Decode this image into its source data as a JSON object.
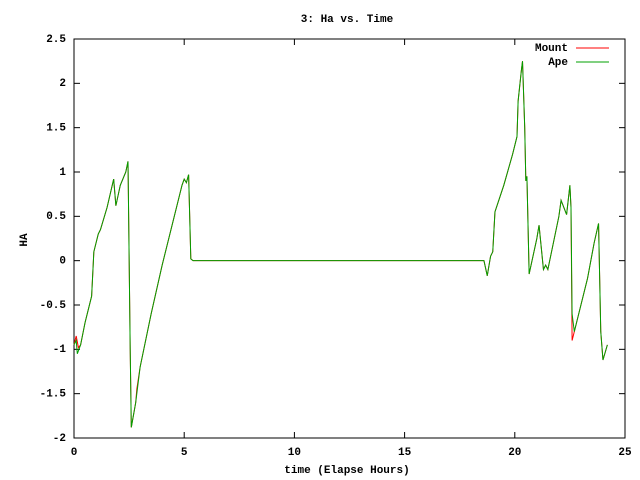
{
  "chart_data": {
    "type": "line",
    "title": "3: Ha vs. Time",
    "x_label": "time (Elapse Hours)",
    "y_label": "HA",
    "xlim": [
      0,
      25
    ],
    "xticks": [
      0,
      5,
      10,
      15,
      20,
      25
    ],
    "ylim": [
      -2,
      2.5
    ],
    "yticks": [
      -2,
      -1.5,
      -1,
      -0.5,
      0,
      0.5,
      1,
      1.5,
      2,
      2.5
    ],
    "grid": false,
    "legend": "top-right",
    "series": [
      {
        "name": "Mount",
        "color": "#ff0000",
        "x": [
          0,
          0.1,
          0.2,
          0.3,
          0.5,
          0.8,
          0.9,
          1.1,
          1.2,
          1.5,
          1.8,
          1.9,
          2.1,
          2.35,
          2.45,
          2.55,
          2.6,
          2.8,
          2.85,
          3.0,
          3.5,
          4.0,
          4.5,
          4.9,
          5.0,
          5.1,
          5.2,
          5.3,
          5.4,
          18.6,
          18.75,
          18.9,
          19.0,
          19.1,
          19.5,
          19.9,
          20.1,
          20.15,
          20.3,
          20.35,
          20.45,
          20.5,
          20.55,
          20.65,
          21.0,
          21.1,
          21.3,
          21.4,
          21.5,
          22.0,
          22.1,
          22.35,
          22.5,
          22.55,
          22.6,
          22.7,
          23.0,
          23.3,
          23.6,
          23.8,
          23.9,
          24.0,
          24.2
        ],
        "values": [
          -0.95,
          -0.85,
          -0.98,
          -0.95,
          -0.7,
          -0.4,
          0.1,
          0.3,
          0.35,
          0.6,
          0.92,
          0.62,
          0.85,
          1.0,
          1.12,
          -1.0,
          -1.88,
          -1.6,
          -1.45,
          -1.2,
          -0.6,
          -0.05,
          0.45,
          0.85,
          0.92,
          0.88,
          0.97,
          0.02,
          0.0,
          0.0,
          -0.17,
          0.05,
          0.1,
          0.55,
          0.85,
          1.2,
          1.4,
          1.8,
          2.15,
          2.25,
          1.5,
          0.9,
          0.95,
          -0.15,
          0.25,
          0.4,
          -0.1,
          -0.05,
          -0.1,
          0.5,
          0.68,
          0.52,
          0.85,
          0.6,
          -0.9,
          -0.8,
          -0.5,
          -0.2,
          0.2,
          0.42,
          -0.8,
          -1.12,
          -0.95
        ]
      },
      {
        "name": "Ape",
        "color": "#00a000",
        "x": [
          0,
          0.1,
          0.15,
          0.3,
          0.5,
          0.8,
          0.9,
          1.1,
          1.2,
          1.5,
          1.8,
          1.9,
          2.1,
          2.35,
          2.45,
          2.55,
          2.6,
          2.8,
          3.0,
          3.5,
          4.0,
          4.5,
          4.9,
          5.0,
          5.1,
          5.2,
          5.3,
          5.4,
          18.6,
          18.75,
          18.9,
          19.0,
          19.1,
          19.5,
          19.9,
          20.1,
          20.15,
          20.3,
          20.35,
          20.45,
          20.5,
          20.55,
          20.65,
          21.0,
          21.1,
          21.3,
          21.4,
          21.5,
          22.0,
          22.1,
          22.35,
          22.5,
          22.55,
          22.6,
          22.7,
          23.0,
          23.3,
          23.6,
          23.8,
          23.9,
          24.0,
          24.2
        ],
        "values": [
          -0.95,
          -0.9,
          -1.05,
          -0.95,
          -0.7,
          -0.4,
          0.1,
          0.3,
          0.35,
          0.6,
          0.92,
          0.62,
          0.85,
          1.0,
          1.12,
          -1.0,
          -1.88,
          -1.6,
          -1.2,
          -0.6,
          -0.05,
          0.45,
          0.85,
          0.92,
          0.88,
          0.97,
          0.02,
          0.0,
          0.0,
          -0.17,
          0.05,
          0.1,
          0.55,
          0.85,
          1.2,
          1.4,
          1.8,
          2.15,
          2.25,
          1.5,
          0.9,
          0.95,
          -0.15,
          0.25,
          0.4,
          -0.1,
          -0.05,
          -0.1,
          0.5,
          0.68,
          0.52,
          0.85,
          0.6,
          -0.6,
          -0.8,
          -0.5,
          -0.2,
          0.2,
          0.42,
          -0.8,
          -1.12,
          -0.95
        ]
      }
    ]
  }
}
